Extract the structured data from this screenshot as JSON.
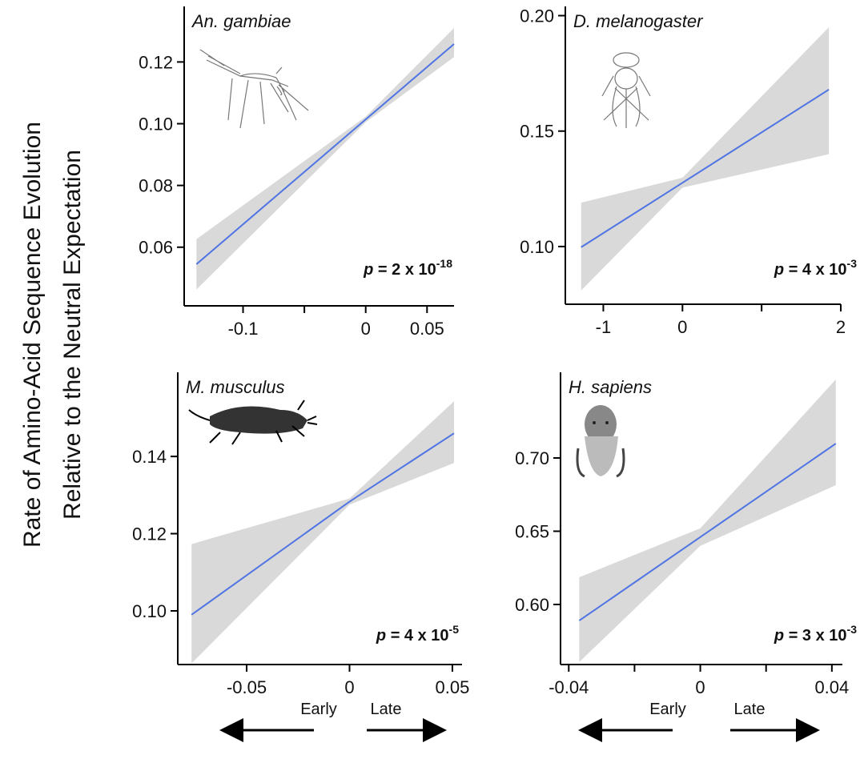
{
  "y_label": [
    "Rate of Amino-Acid Sequence Evolution",
    "Relative to the Neutral Expectation"
  ],
  "x_direction_labels": [
    "Early",
    "Late"
  ],
  "chart_data": [
    {
      "type": "line",
      "title": "An. gambiae",
      "annotation": {
        "symbol": "p",
        "text": " = 2 x 10",
        "exponent": "-18"
      },
      "x": [
        -0.138,
        0,
        0.072
      ],
      "values": [
        0.0545,
        0.1014,
        0.1258
      ],
      "ci_lower": [
        0.0463,
        0.1005,
        0.1216
      ],
      "ci_upper": [
        0.0626,
        0.1023,
        0.131
      ],
      "color": "#4f74e3",
      "band_color": "#d9d9d9",
      "xlim": [
        -0.148,
        0.072
      ],
      "xticks": [
        -0.1,
        0,
        0.05
      ],
      "xminor_ticks": [
        -0.05
      ],
      "ylim": [
        0.041,
        0.138
      ],
      "yticks": [
        {
          "value": 0.06,
          "label": "0.06"
        },
        {
          "value": 0.08,
          "label": "0.08"
        },
        {
          "value": 0.1,
          "label": "0.10"
        },
        {
          "value": 0.12,
          "label": "0.12"
        }
      ]
    },
    {
      "type": "line",
      "title": "D. melanogaster",
      "annotation": {
        "symbol": "p",
        "text": " = 4 x 10",
        "exponent": "-3"
      },
      "x": [
        -1.28,
        0,
        1.85
      ],
      "values": [
        0.0997,
        0.1276,
        0.168
      ],
      "ci_lower": [
        0.081,
        0.1255,
        0.14
      ],
      "ci_upper": [
        0.119,
        0.1298,
        0.195
      ],
      "color": "#4f74e3",
      "band_color": "#d9d9d9",
      "xlim": [
        -1.48,
        2.0
      ],
      "xticks": [
        -1,
        0,
        2
      ],
      "xminor_ticks": [
        1
      ],
      "ylim": [
        0.075,
        0.204
      ],
      "yticks": [
        {
          "value": 0.1,
          "label": "0.10"
        },
        0.15,
        {
          "value": 0.2,
          "label": "0.20"
        }
      ]
    },
    {
      "type": "line",
      "title": "M. musculus",
      "annotation": {
        "symbol": "p",
        "text": " = 4 x 10",
        "exponent": "-5"
      },
      "x": [
        -0.0768,
        0,
        0.0508
      ],
      "values": [
        0.099,
        0.1283,
        0.146
      ],
      "ci_lower": [
        0.0864,
        0.1275,
        0.1383
      ],
      "ci_upper": [
        0.1173,
        0.1291,
        0.1543
      ],
      "color": "#4f74e3",
      "band_color": "#d9d9d9",
      "xlim": [
        -0.0835,
        0.0547
      ],
      "xticks": [
        -0.05,
        0,
        0.05
      ],
      "xminor_ticks": [],
      "ylim": [
        0.0861,
        0.1618
      ],
      "yticks": [
        {
          "value": 0.1,
          "label": "0.10"
        },
        0.12,
        0.14
      ]
    },
    {
      "type": "line",
      "title": "H. sapiens",
      "annotation": {
        "symbol": "p",
        "text": " = 3 x 10",
        "exponent": "-3"
      },
      "x": [
        -0.0368,
        0,
        0.0412
      ],
      "values": [
        0.589,
        0.646,
        0.7098
      ],
      "ci_lower": [
        0.5607,
        0.64,
        0.6814
      ],
      "ci_upper": [
        0.6186,
        0.652,
        0.7536
      ],
      "color": "#4f74e3",
      "band_color": "#d9d9d9",
      "xlim": [
        -0.0425,
        0.0432
      ],
      "xticks": [
        -0.04,
        0,
        0.04
      ],
      "xminor_ticks": [
        -0.02,
        0.02
      ],
      "ylim": [
        0.559,
        0.7585
      ],
      "yticks": [
        {
          "value": 0.6,
          "label": "0.60"
        },
        0.65,
        {
          "value": 0.7,
          "label": "0.70"
        }
      ]
    }
  ]
}
